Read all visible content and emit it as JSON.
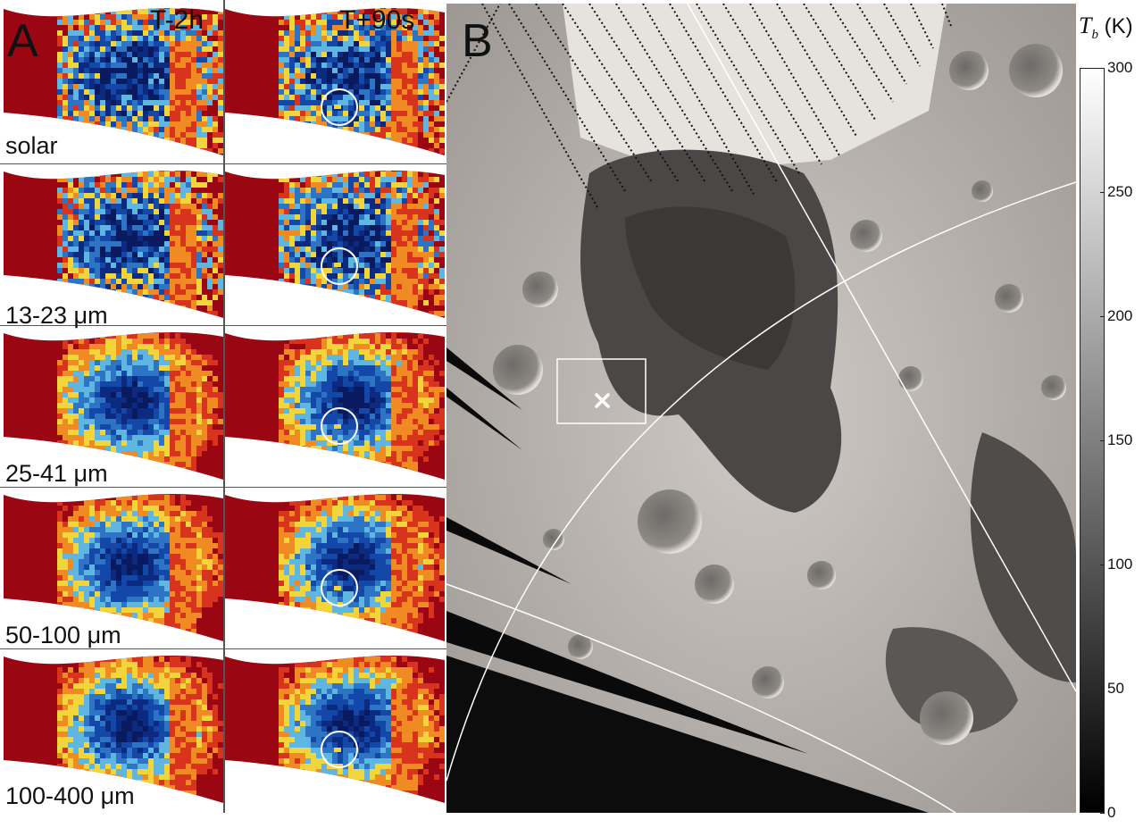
{
  "panels": {
    "a_label": "A",
    "b_label": "B"
  },
  "columns": [
    {
      "label": "T-2h"
    },
    {
      "label": "T+90s"
    }
  ],
  "rows": [
    {
      "label": "solar"
    },
    {
      "label": "13-23 μm"
    },
    {
      "label": "25-41 μm"
    },
    {
      "label": "50-100 μm"
    },
    {
      "label": "100-400 μm"
    }
  ],
  "colorbar": {
    "symbol": "T",
    "subscript": "b",
    "unit": " (K)",
    "min": 0,
    "max": 300,
    "ticks": [
      "0",
      "50",
      "100",
      "150",
      "200",
      "250",
      "300"
    ]
  },
  "colors": {
    "background": "#ffffff",
    "hot": "#9a0612",
    "cold": "#0a1a5e",
    "marker": "#ffffff"
  },
  "markers": {
    "impact_site": "x-mark",
    "a_panel_markers": "circle"
  }
}
